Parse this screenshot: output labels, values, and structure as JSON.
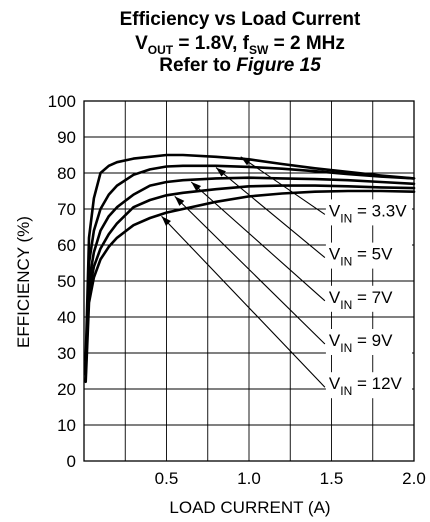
{
  "chart_data": {
    "type": "line",
    "title_line1": "Efficiency vs Load Current",
    "title_line2": {
      "v": "V",
      "v_sub": "OUT",
      "v_rest": " = 1.8V, f",
      "f_sub": "SW",
      "f_rest": " = 2 MHz"
    },
    "title_line3": {
      "text": "Refer to ",
      "italic": "Figure 15"
    },
    "xlabel": "LOAD CURRENT (A)",
    "ylabel": "EFFICIENCY (%)",
    "xlim": [
      0,
      2.0
    ],
    "ylim": [
      0,
      100
    ],
    "xticks": [
      0.5,
      1.0,
      1.5,
      2.0
    ],
    "xtick_labels": [
      "0.5",
      "1.0",
      "1.5",
      "2.0"
    ],
    "yticks": [
      0,
      10,
      20,
      30,
      40,
      50,
      60,
      70,
      80,
      90,
      100
    ],
    "ytick_labels": [
      "0",
      "10",
      "20",
      "30",
      "40",
      "50",
      "60",
      "70",
      "80",
      "90",
      "100"
    ],
    "grid": true,
    "series": [
      {
        "label_prefix": "V",
        "label_sub": "IN",
        "label_value": " = 3.3V",
        "arrow_at": [
          0.95,
          84.5
        ],
        "label_at": [
          1.46,
          68.5
        ],
        "x": [
          0.01,
          0.03,
          0.06,
          0.1,
          0.15,
          0.2,
          0.3,
          0.4,
          0.5,
          0.6,
          0.8,
          1.0,
          1.2,
          1.4,
          1.6,
          1.8,
          2.0
        ],
        "y": [
          28,
          62,
          73,
          80,
          82,
          83,
          84,
          84.5,
          85,
          85,
          84.5,
          83.8,
          82.5,
          81.3,
          80.3,
          79.3,
          78.5
        ]
      },
      {
        "label_prefix": "V",
        "label_sub": "IN",
        "label_value": " = 5V",
        "arrow_at": [
          0.8,
          81.5
        ],
        "label_at": [
          1.46,
          56.5
        ],
        "x": [
          0.01,
          0.03,
          0.06,
          0.1,
          0.15,
          0.2,
          0.3,
          0.4,
          0.5,
          0.6,
          0.8,
          1.0,
          1.2,
          1.4,
          1.6,
          1.8,
          2.0
        ],
        "y": [
          26,
          55,
          64,
          70,
          74,
          76.5,
          79.5,
          81,
          81.8,
          82,
          82,
          81.7,
          81.2,
          80.5,
          79.7,
          79,
          78.5
        ]
      },
      {
        "label_prefix": "V",
        "label_sub": "IN",
        "label_value": " = 7V",
        "arrow_at": [
          0.65,
          77.5
        ],
        "label_at": [
          1.46,
          44.5
        ],
        "x": [
          0.01,
          0.03,
          0.06,
          0.1,
          0.15,
          0.2,
          0.3,
          0.4,
          0.5,
          0.6,
          0.8,
          1.0,
          1.2,
          1.4,
          1.6,
          1.8,
          2.0
        ],
        "y": [
          25,
          50,
          58,
          64,
          68,
          70.5,
          74,
          76.5,
          77.5,
          78,
          78.5,
          78.7,
          78.5,
          78.3,
          78,
          77.5,
          77
        ]
      },
      {
        "label_prefix": "V",
        "label_sub": "IN",
        "label_value": " = 9V",
        "arrow_at": [
          0.55,
          73.5
        ],
        "label_at": [
          1.46,
          32.5
        ],
        "x": [
          0.01,
          0.03,
          0.06,
          0.1,
          0.15,
          0.2,
          0.3,
          0.4,
          0.5,
          0.6,
          0.8,
          1.0,
          1.2,
          1.4,
          1.6,
          1.8,
          2.0
        ],
        "y": [
          24,
          47,
          54,
          59,
          63,
          66,
          70.5,
          72.5,
          73.8,
          74.5,
          75.5,
          76.3,
          76.5,
          76.5,
          76.3,
          76,
          75.8
        ]
      },
      {
        "label_prefix": "V",
        "label_sub": "IN",
        "label_value": " = 12V",
        "arrow_at": [
          0.47,
          68
        ],
        "label_at": [
          1.46,
          20.5
        ],
        "x": [
          0.01,
          0.03,
          0.06,
          0.1,
          0.15,
          0.2,
          0.3,
          0.4,
          0.5,
          0.6,
          0.8,
          1.0,
          1.2,
          1.4,
          1.6,
          1.8,
          2.0
        ],
        "y": [
          22,
          44,
          51,
          56,
          59.5,
          62,
          65.5,
          67.5,
          69,
          70,
          72,
          73.5,
          74.3,
          74.8,
          75,
          75,
          74.8
        ]
      }
    ]
  }
}
